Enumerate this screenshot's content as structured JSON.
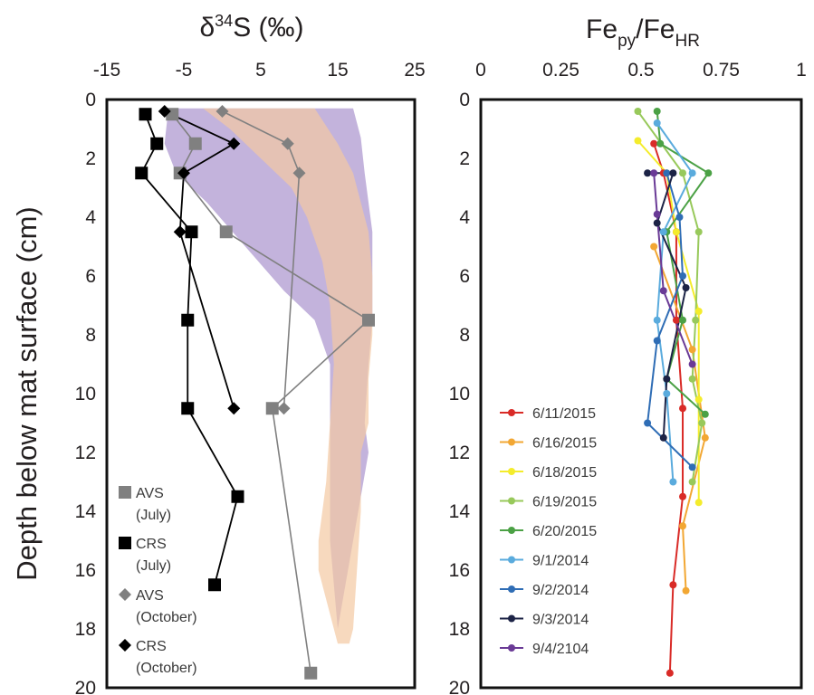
{
  "chart_data": [
    {
      "type": "line",
      "title": "δ³⁴S (‰)",
      "title_parts": {
        "delta": "δ",
        "sup": "34",
        "rest": "S (‰)"
      },
      "xlabel": "δ³⁴S (‰)",
      "ylabel": "Depth below mat surface (cm)",
      "xlim": [
        -15,
        25
      ],
      "ylim": [
        0,
        20
      ],
      "y_inverted": true,
      "xticks": [
        "-15",
        "-5",
        "5",
        "15",
        "25"
      ],
      "xtick_values": [
        -15,
        -5,
        5,
        15,
        25
      ],
      "yticks": [
        "0",
        "2",
        "4",
        "6",
        "8",
        "10",
        "12",
        "14",
        "16",
        "18",
        "20"
      ],
      "series": [
        {
          "name": "AVS (July)",
          "marker": "square",
          "color": "#808080",
          "points": [
            [
              -6.5,
              0.5
            ],
            [
              -3.5,
              1.5
            ],
            [
              -5.5,
              2.5
            ],
            [
              0.5,
              4.5
            ],
            [
              19,
              7.5
            ],
            [
              6.5,
              10.5
            ],
            [
              11.5,
              19.5
            ]
          ]
        },
        {
          "name": "CRS (July)",
          "marker": "square",
          "color": "#000000",
          "points": [
            [
              -10,
              0.5
            ],
            [
              -8.5,
              1.5
            ],
            [
              -10.5,
              2.5
            ],
            [
              -4,
              4.5
            ],
            [
              -4.5,
              7.5
            ],
            [
              -4.5,
              10.5
            ],
            [
              2,
              13.5
            ],
            [
              -1,
              16.5
            ]
          ]
        },
        {
          "name": "AVS (October)",
          "marker": "diamond",
          "color": "#808080",
          "points": [
            [
              0,
              0.4
            ],
            [
              8.5,
              1.5
            ],
            [
              10,
              2.5
            ],
            [
              8,
              10.5
            ]
          ]
        },
        {
          "name": "CRS (October)",
          "marker": "diamond",
          "color": "#000000",
          "points": [
            [
              -7.5,
              0.4
            ],
            [
              1.5,
              1.5
            ],
            [
              -5,
              2.5
            ],
            [
              -5.5,
              4.5
            ],
            [
              1.5,
              10.5
            ]
          ]
        }
      ],
      "areas": [
        {
          "color": "#b8a6d6",
          "left": [
            [
              -7,
              0.3
            ],
            [
              -7.5,
              1.5
            ],
            [
              -6,
              2.5
            ],
            [
              -2,
              3.5
            ],
            [
              3,
              5
            ],
            [
              8,
              6.5
            ],
            [
              12,
              7.5
            ],
            [
              14,
              9
            ],
            [
              14,
              11
            ],
            [
              14,
              13
            ],
            [
              14,
              15
            ],
            [
              15,
              18
            ]
          ],
          "right": [
            [
              17,
              0.3
            ],
            [
              18,
              1.3
            ],
            [
              18.5,
              2.5
            ],
            [
              19.5,
              4.5
            ],
            [
              19.5,
              7.5
            ],
            [
              19,
              9
            ],
            [
              18.5,
              11
            ],
            [
              19,
              12
            ]
          ]
        },
        {
          "color": "#f3c9a3",
          "left": [
            [
              -2.5,
              0.3
            ],
            [
              1,
              1
            ],
            [
              5,
              2
            ],
            [
              9,
              3
            ],
            [
              11,
              4
            ],
            [
              13,
              5.5
            ],
            [
              14,
              7
            ],
            [
              14.5,
              9
            ],
            [
              14,
              11
            ],
            [
              13.5,
              13
            ],
            [
              12.5,
              15
            ],
            [
              12.5,
              16
            ],
            [
              15,
              18.5
            ]
          ],
          "right": [
            [
              12,
              0.3
            ],
            [
              15,
              1.5
            ],
            [
              17,
              2.5
            ],
            [
              18,
              3.5
            ],
            [
              19,
              4.5
            ],
            [
              19.5,
              6
            ],
            [
              19.5,
              8
            ],
            [
              19,
              9.5
            ],
            [
              19,
              11
            ],
            [
              18,
              12
            ],
            [
              18,
              14
            ],
            [
              17.5,
              16
            ],
            [
              17,
              18
            ],
            [
              16.5,
              18.5
            ]
          ]
        }
      ],
      "legend": [
        "AVS",
        "(July)",
        "CRS",
        "(July)",
        "AVS",
        "(October)",
        "CRS",
        "(October)"
      ],
      "legend_position": "bottom-left"
    },
    {
      "type": "line",
      "title": "Fe_py/Fe_HR",
      "title_parts": {
        "a": "Fe",
        "sub1": "py",
        "b": "/Fe",
        "sub2": "HR"
      },
      "xlabel": "Fe_py/Fe_HR",
      "ylabel": "",
      "xlim": [
        0,
        1
      ],
      "ylim": [
        0,
        20
      ],
      "y_inverted": true,
      "xticks": [
        "0",
        "0.25",
        "0.5",
        "0.75",
        "1"
      ],
      "xtick_values": [
        0,
        0.25,
        0.5,
        0.75,
        1
      ],
      "yticks": [
        "0",
        "2",
        "4",
        "6",
        "8",
        "10",
        "12",
        "14",
        "16",
        "18",
        "20"
      ],
      "series": [
        {
          "name": "6/11/2015",
          "color": "#d92b27",
          "points": [
            [
              0.54,
              1.5
            ],
            [
              0.57,
              2.5
            ],
            [
              0.61,
              4.5
            ],
            [
              0.61,
              7.5
            ],
            [
              0.63,
              10.5
            ],
            [
              0.63,
              13.5
            ],
            [
              0.6,
              16.5
            ],
            [
              0.59,
              19.5
            ]
          ]
        },
        {
          "name": "6/16/2015",
          "color": "#f2a733",
          "points": [
            [
              0.54,
              5
            ],
            [
              0.66,
              8.5
            ],
            [
              0.7,
              11.5
            ],
            [
              0.63,
              14.5
            ],
            [
              0.64,
              16.7
            ]
          ]
        },
        {
          "name": "6/18/2015",
          "color": "#f4ec2c",
          "points": [
            [
              0.49,
              1.4
            ],
            [
              0.58,
              2.5
            ],
            [
              0.61,
              4.5
            ],
            [
              0.68,
              7.2
            ],
            [
              0.68,
              10.2
            ],
            [
              0.68,
              13.7
            ]
          ]
        },
        {
          "name": "6/19/2015",
          "color": "#98c95b",
          "points": [
            [
              0.49,
              0.4
            ],
            [
              0.63,
              2.5
            ],
            [
              0.68,
              4.5
            ],
            [
              0.67,
              7.5
            ],
            [
              0.66,
              9.5
            ],
            [
              0.69,
              11
            ],
            [
              0.66,
              13
            ]
          ]
        },
        {
          "name": "6/20/2015",
          "color": "#4ba145",
          "points": [
            [
              0.55,
              0.4
            ],
            [
              0.56,
              1.5
            ],
            [
              0.71,
              2.5
            ],
            [
              0.58,
              4.5
            ],
            [
              0.63,
              7.5
            ],
            [
              0.58,
              9.5
            ],
            [
              0.7,
              10.7
            ]
          ]
        },
        {
          "name": "9/1/2014",
          "color": "#5aabdd",
          "points": [
            [
              0.55,
              0.8
            ],
            [
              0.66,
              2.5
            ],
            [
              0.57,
              4.5
            ],
            [
              0.55,
              7.5
            ],
            [
              0.58,
              10
            ],
            [
              0.6,
              13
            ]
          ]
        },
        {
          "name": "9/2/2014",
          "color": "#2f6db5",
          "points": [
            [
              0.58,
              2.5
            ],
            [
              0.62,
              4
            ],
            [
              0.63,
              6
            ],
            [
              0.55,
              8.2
            ],
            [
              0.52,
              11
            ],
            [
              0.66,
              12.5
            ]
          ]
        },
        {
          "name": "9/3/2014",
          "color": "#1c2346",
          "points": [
            [
              0.52,
              2.5
            ],
            [
              0.6,
              2.5
            ],
            [
              0.55,
              4.2
            ],
            [
              0.64,
              6.4
            ],
            [
              0.58,
              9.5
            ],
            [
              0.57,
              11.5
            ]
          ]
        },
        {
          "name": "9/4/2104",
          "color": "#6a3a96",
          "points": [
            [
              0.54,
              2.5
            ],
            [
              0.55,
              3.9
            ],
            [
              0.57,
              6.5
            ],
            [
              0.66,
              9
            ]
          ]
        }
      ],
      "legend_position": "bottom-left"
    }
  ]
}
